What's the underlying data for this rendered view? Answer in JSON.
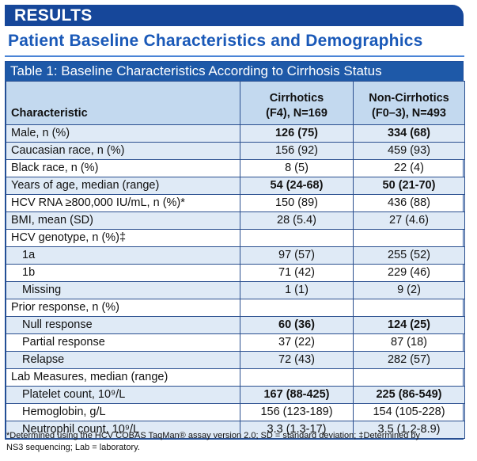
{
  "banner": "RESULTS",
  "subtitle": "Patient Baseline Characteristics and Demographics",
  "table_title": "Table 1: Baseline Characteristics According to Cirrhosis Status",
  "headers": {
    "characteristic": "Characteristic",
    "col1_line1": "Cirrhotics",
    "col1_line2": "(F4), N=169",
    "col2_line1": "Non-Cirrhotics",
    "col2_line2": "(F0–3), N=493"
  },
  "rows": [
    {
      "label": "Male, n (%)",
      "c1": "126 (75)",
      "c2": "334 (68)"
    },
    {
      "label": "Caucasian race, n (%)",
      "c1": "156 (92)",
      "c2": "459 (93)"
    },
    {
      "label": "Black race, n (%)",
      "c1": "8 (5)",
      "c2": "22 (4)"
    },
    {
      "label": "Years of age, median (range)",
      "c1": "54 (24-68)",
      "c2": "50 (21-70)"
    },
    {
      "label": "HCV RNA ≥800,000 IU/mL, n (%)*",
      "c1": "150 (89)",
      "c2": "436 (88)"
    },
    {
      "label": "BMI, mean (SD)",
      "c1": "28 (5.4)",
      "c2": "27 (4.6)"
    },
    {
      "label": "HCV genotype, n (%)‡",
      "c1": "",
      "c2": ""
    },
    {
      "label": "1a",
      "c1": "97 (57)",
      "c2": "255 (52)"
    },
    {
      "label": "1b",
      "c1": "71 (42)",
      "c2": "229 (46)"
    },
    {
      "label": "Missing",
      "c1": "1 (1)",
      "c2": "9 (2)"
    },
    {
      "label": "Prior response, n (%)",
      "c1": "",
      "c2": ""
    },
    {
      "label": "Null response",
      "c1": "60 (36)",
      "c2": "124 (25)"
    },
    {
      "label": "Partial response",
      "c1": "37 (22)",
      "c2": "87 (18)"
    },
    {
      "label": "Relapse",
      "c1": "72 (43)",
      "c2": "282 (57)"
    },
    {
      "label": "Lab Measures, median (range)",
      "c1": "",
      "c2": ""
    },
    {
      "label": "Platelet count, 10⁹/L",
      "c1": "167 (88-425)",
      "c2": "225 (86-549)"
    },
    {
      "label": "Hemoglobin, g/L",
      "c1": "156 (123-189)",
      "c2": "154 (105-228)"
    },
    {
      "label": "Neutrophil count, 10⁹/L",
      "c1": "3.3 (1.3-17)",
      "c2": "3.5 (1.2-8.9)"
    }
  ],
  "footnote_line1": "*Determined using the HCV COBAS TaqMan® assay version 2.0; SD = standard deviation; ‡Determined by",
  "footnote_line2": "NS3 sequencing; Lab = laboratory."
}
